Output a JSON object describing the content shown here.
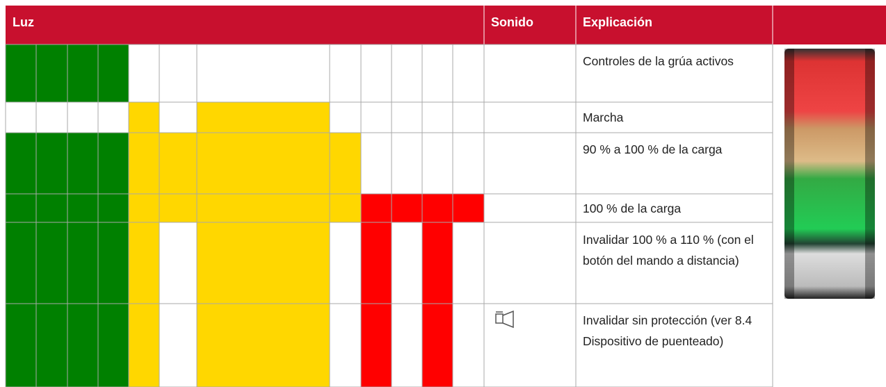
{
  "header": {
    "light": "Luz",
    "sound": "Sonido",
    "explanation": "Explicación"
  },
  "rows": [
    {
      "explanation": "Controles de la grúa activos"
    },
    {
      "explanation": "Marcha"
    },
    {
      "explanation": "90 % a 100 % de la carga"
    },
    {
      "explanation": "100 % de la carga"
    },
    {
      "explanation": "Invalidar 100 % a 110 % (con el botón del mando a distancia)"
    },
    {
      "explanation": "Invalidar sin protección (ver 8.4 Dispositivo de puenteado)"
    }
  ]
}
